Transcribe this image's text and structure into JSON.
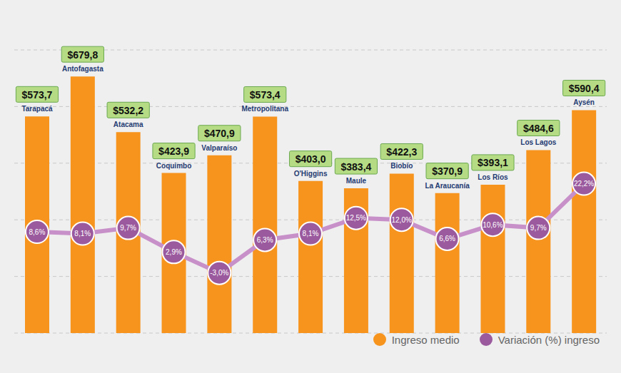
{
  "chart_data": {
    "type": "bar",
    "categories": [
      "Tarapacá",
      "Antofagasta",
      "Atacama",
      "Coquimbo",
      "Valparaíso",
      "Metropolitana",
      "O'Higgins",
      "Maule",
      "Biobío",
      "La Araucanía",
      "Los Ríos",
      "Los Lagos",
      "Aysén"
    ],
    "series": [
      {
        "name": "Ingreso medio",
        "type": "bar",
        "color": "#f7941d",
        "values": [
          573.7,
          679.8,
          532.2,
          423.9,
          470.9,
          573.4,
          403.0,
          383.4,
          422.3,
          370.9,
          393.1,
          484.6,
          590.4
        ],
        "value_labels": [
          "$573,7",
          "$679,8",
          "$532,2",
          "$423,9",
          "$470,9",
          "$573,4",
          "$403,0",
          "$383,4",
          "$422,3",
          "$370,9",
          "$393,1",
          "$484,6",
          "$590,4"
        ]
      },
      {
        "name": "Variación (%) ingreso",
        "type": "line",
        "axis": "y2",
        "color": "#c890c8",
        "marker": "circle",
        "values": [
          8.6,
          8.1,
          9.7,
          2.9,
          -3.0,
          6.3,
          8.1,
          12.5,
          12.0,
          6.6,
          10.6,
          9.7,
          22.2
        ],
        "value_labels": [
          "8,6%",
          "8,1%",
          "9,7%",
          "2,9%",
          "-3,0%",
          "6,3%",
          "8,1%",
          "12,5%",
          "12,0%",
          "6,6%",
          "10,6%",
          "9,7%",
          "22,2%"
        ]
      }
    ],
    "ylim": [
      0,
      750
    ],
    "yticks": [
      0,
      150,
      300,
      450,
      600,
      750
    ],
    "y2lim": [
      -20,
      60
    ],
    "y2ticks": [
      -20,
      0,
      20,
      40,
      60
    ],
    "grid": true,
    "data_labels": true,
    "tick_labels": false,
    "legend": "lower right"
  }
}
